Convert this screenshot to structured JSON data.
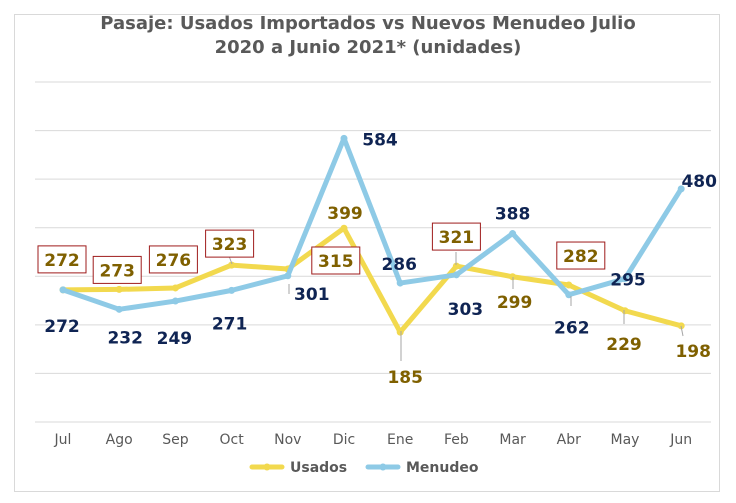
{
  "chart_data": {
    "type": "line",
    "title_line1": "Pasaje: Usados Importados  vs Nuevos Menudeo  Julio",
    "title_line2": "2020 a Junio 2021* (unidades)",
    "categories": [
      "Jul",
      "Ago",
      "Sep",
      "Oct",
      "Nov",
      "Dic",
      "Ene",
      "Feb",
      "Mar",
      "Abr",
      "May",
      "Jun"
    ],
    "series": [
      {
        "name": "Usados",
        "color": "#f2d94e",
        "label_color": "#7f6000",
        "values": [
          272,
          273,
          276,
          323,
          315,
          399,
          185,
          321,
          299,
          282,
          229,
          198
        ]
      },
      {
        "name": "Menudeo",
        "color": "#8ecae6",
        "label_color": "#0f2453",
        "values": [
          272,
          232,
          249,
          271,
          301,
          584,
          286,
          303,
          388,
          262,
          295,
          480
        ]
      }
    ],
    "ylim": [
      0,
      700
    ],
    "grid": true,
    "legend": "bottom"
  }
}
